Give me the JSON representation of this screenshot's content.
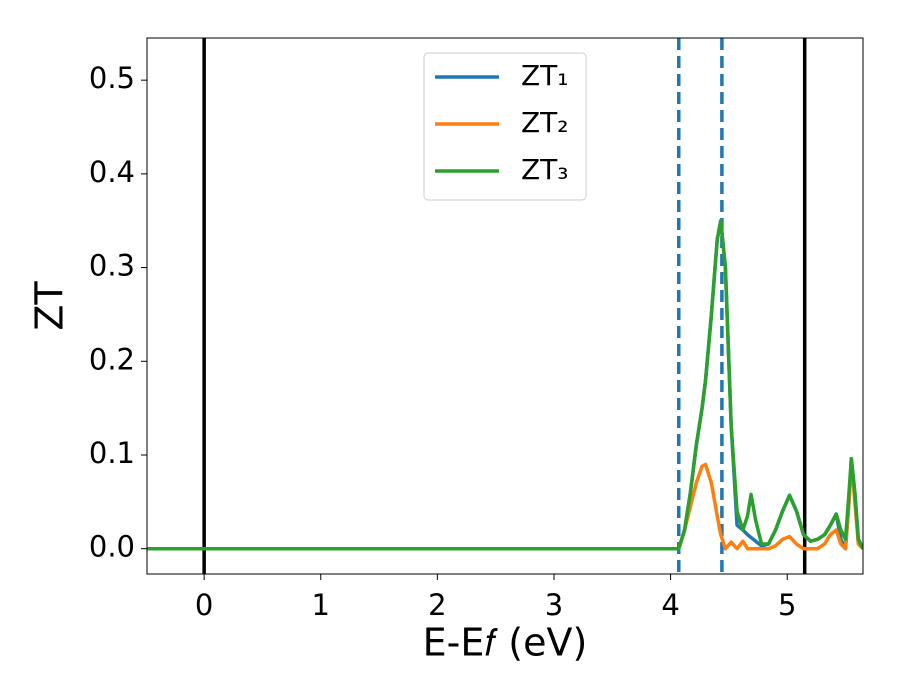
{
  "chart_data": {
    "type": "line",
    "xlabel": "E-E𝑓 (eV)",
    "ylabel": "ZT",
    "x": [
      -0.49,
      4.0,
      4.07,
      4.12,
      4.17,
      4.22,
      4.27,
      4.3,
      4.35,
      4.4,
      4.43,
      4.47,
      4.52,
      4.57,
      4.62,
      4.66,
      4.69,
      4.73,
      4.78,
      4.84,
      4.9,
      4.96,
      5.02,
      5.08,
      5.14,
      5.2,
      5.26,
      5.32,
      5.37,
      5.42,
      5.46,
      5.5,
      5.53,
      5.55,
      5.58,
      5.61,
      5.65
    ],
    "series": [
      {
        "name": "ZT₁",
        "color": "#1f77b4",
        "values": [
          0,
          0,
          0,
          0.02,
          0.06,
          0.11,
          0.15,
          0.18,
          0.25,
          0.33,
          0.35,
          0.3,
          0.13,
          0.025,
          0.02,
          0.015,
          0.012,
          0.008,
          0.003,
          0.005,
          0.02,
          0.04,
          0.057,
          0.04,
          0.015,
          0.008,
          0.01,
          0.015,
          0.025,
          0.037,
          0.01,
          0.0,
          0.05,
          0.096,
          0.06,
          0.01,
          0.0
        ]
      },
      {
        "name": "ZT₂",
        "color": "#ff7f0e",
        "values": [
          0,
          0,
          0,
          0.02,
          0.045,
          0.07,
          0.088,
          0.09,
          0.07,
          0.035,
          0.015,
          0.0,
          0.007,
          0.0,
          0.008,
          0.0,
          0.0,
          0.0,
          0.0,
          0.0,
          0.003,
          0.01,
          0.013,
          0.005,
          0.0,
          0.0,
          0.0,
          0.005,
          0.015,
          0.02,
          0.005,
          0.0,
          0.05,
          0.094,
          0.05,
          0.005,
          0.0
        ]
      },
      {
        "name": "ZT₃",
        "color": "#2ca02c",
        "values": [
          0,
          0,
          0,
          0.02,
          0.06,
          0.11,
          0.15,
          0.18,
          0.25,
          0.33,
          0.35,
          0.3,
          0.13,
          0.04,
          0.02,
          0.035,
          0.058,
          0.03,
          0.005,
          0.005,
          0.02,
          0.04,
          0.057,
          0.04,
          0.015,
          0.008,
          0.01,
          0.015,
          0.025,
          0.037,
          0.02,
          0.01,
          0.06,
          0.096,
          0.06,
          0.01,
          0.0
        ]
      }
    ],
    "vlines": [
      {
        "x": 0,
        "color": "#000000",
        "style": "solid"
      },
      {
        "x": 5.15,
        "color": "#000000",
        "style": "solid"
      },
      {
        "x": 4.07,
        "color": "#1f77b4",
        "style": "dashed"
      },
      {
        "x": 4.44,
        "color": "#1f77b4",
        "style": "dashed"
      }
    ],
    "xlim": [
      -0.49,
      5.65
    ],
    "ylim": [
      -0.027,
      0.545
    ],
    "xticks": [
      0,
      1,
      2,
      3,
      4,
      5
    ],
    "yticks": [
      {
        "value": 0,
        "label": "0.0"
      },
      0.1,
      0.2,
      0.3,
      0.4,
      0.5
    ],
    "legend": "upper center"
  }
}
